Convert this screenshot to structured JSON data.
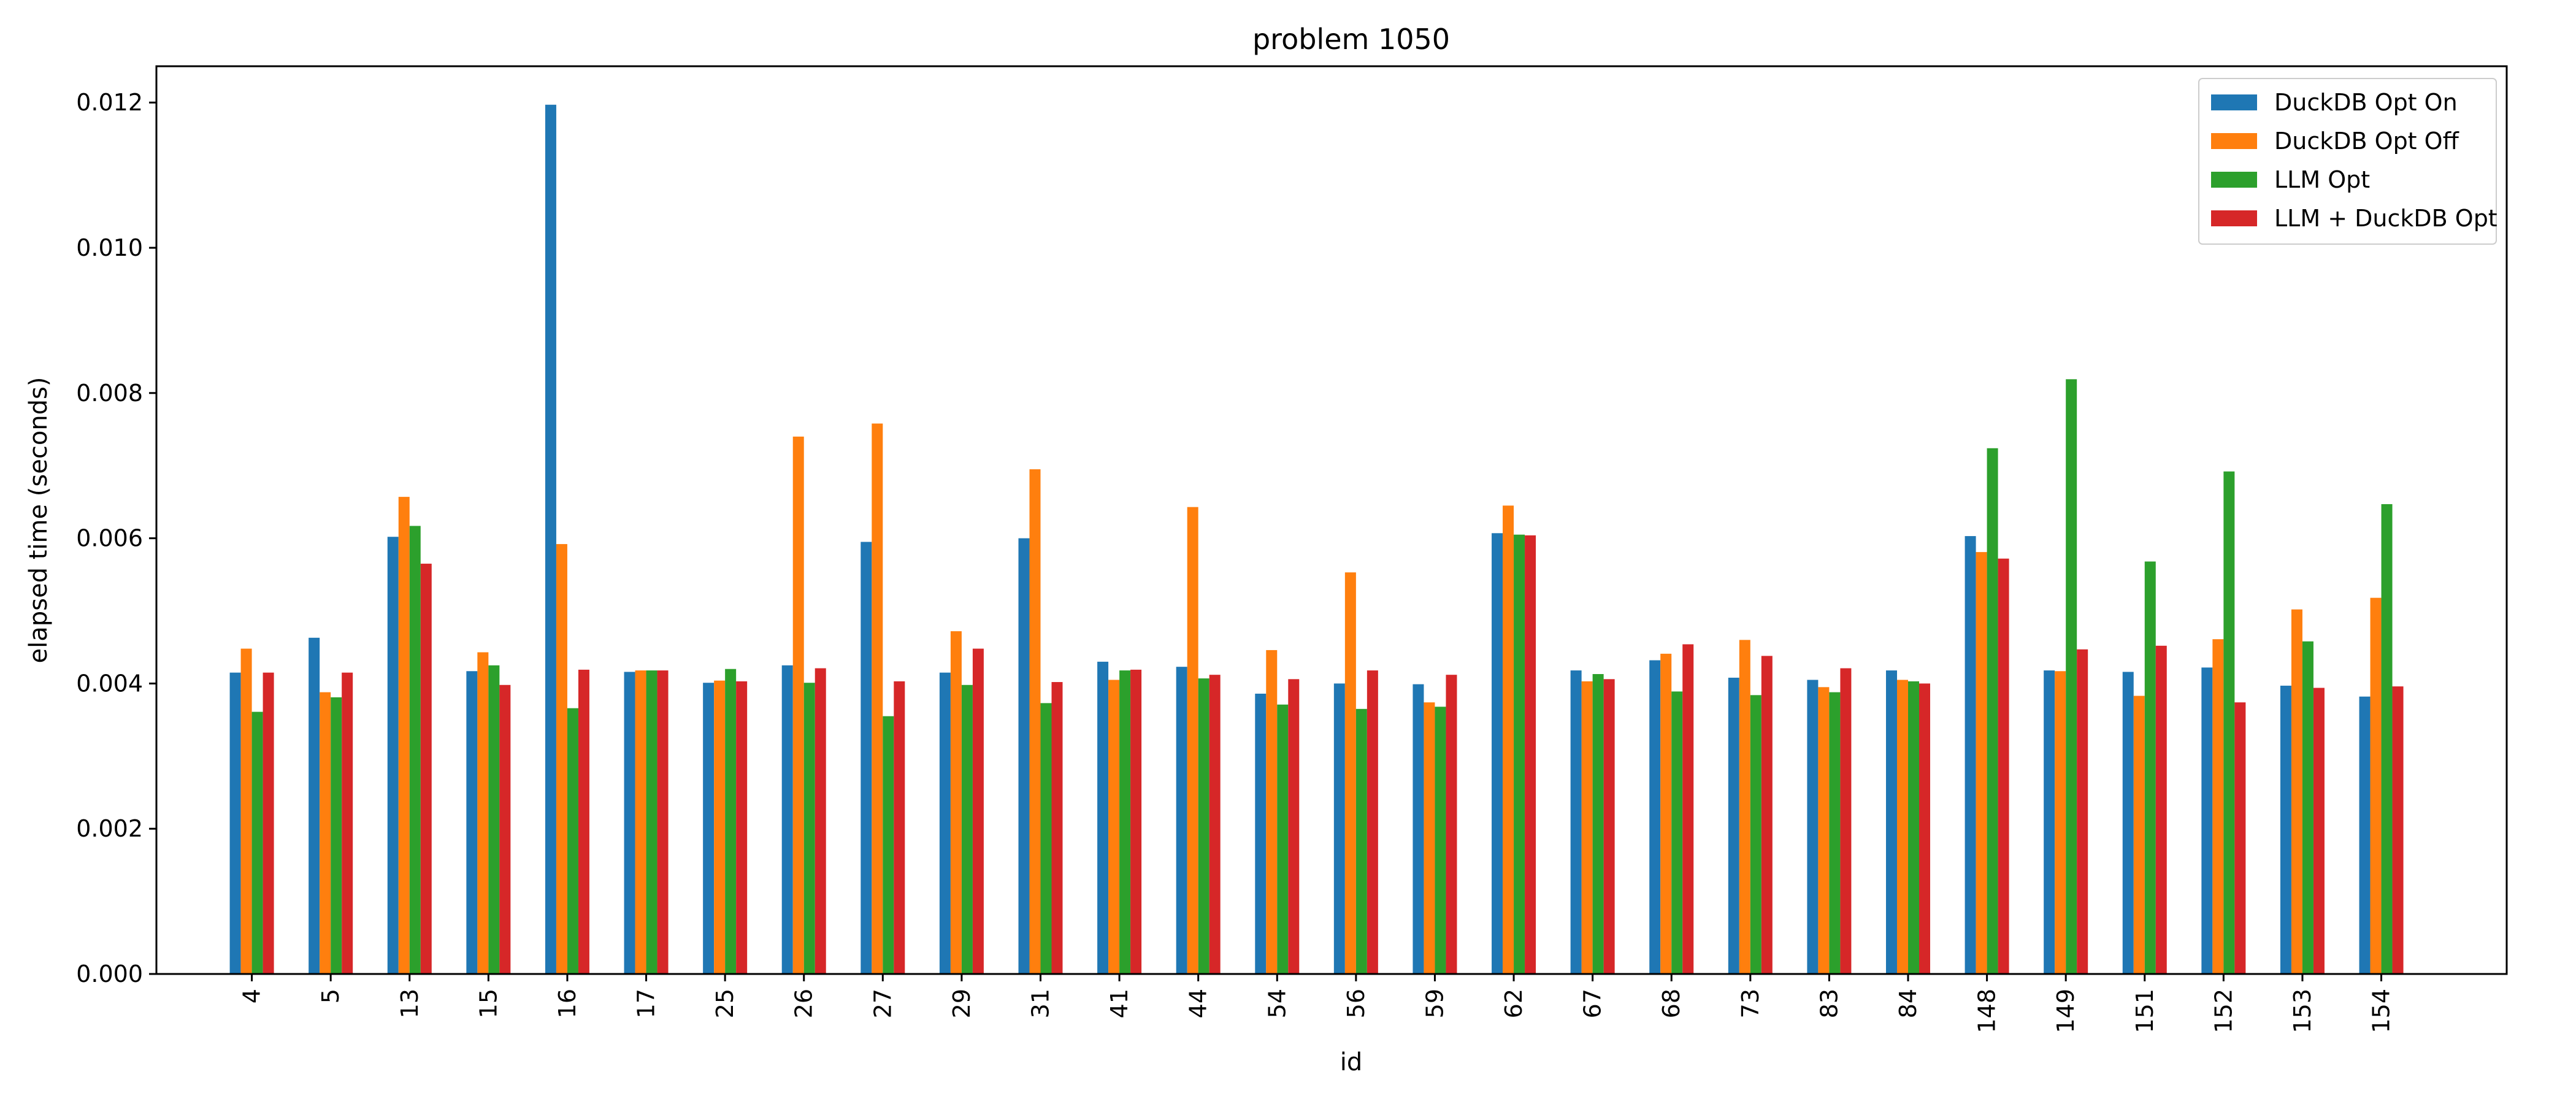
{
  "chart_data": {
    "type": "bar",
    "title": "problem 1050",
    "xlabel": "id",
    "ylabel": "elapsed time (seconds)",
    "ylim": [
      0,
      0.0125
    ],
    "yticks": [
      "0.000",
      "0.002",
      "0.004",
      "0.006",
      "0.008",
      "0.010",
      "0.012"
    ],
    "grid": false,
    "legend_position": "top-right",
    "categories": [
      "4",
      "5",
      "13",
      "15",
      "16",
      "17",
      "25",
      "26",
      "27",
      "29",
      "31",
      "41",
      "44",
      "54",
      "56",
      "59",
      "62",
      "67",
      "68",
      "73",
      "83",
      "84",
      "148",
      "149",
      "151",
      "152",
      "153",
      "154"
    ],
    "series": [
      {
        "name": "DuckDB Opt On",
        "color": "#1f77b4",
        "values": [
          0.00415,
          0.00463,
          0.00602,
          0.00417,
          0.01197,
          0.00416,
          0.00401,
          0.00425,
          0.00595,
          0.00415,
          0.006,
          0.0043,
          0.00423,
          0.00386,
          0.004,
          0.00399,
          0.00607,
          0.00418,
          0.00432,
          0.00408,
          0.00405,
          0.00418,
          0.00603,
          0.00418,
          0.00416,
          0.00422,
          0.00397,
          0.00382
        ]
      },
      {
        "name": "DuckDB Opt Off",
        "color": "#ff7f0e",
        "values": [
          0.00448,
          0.00388,
          0.00657,
          0.00443,
          0.00592,
          0.00418,
          0.00404,
          0.0074,
          0.00758,
          0.00472,
          0.00695,
          0.00405,
          0.00643,
          0.00446,
          0.00553,
          0.00374,
          0.00645,
          0.00403,
          0.00441,
          0.0046,
          0.00395,
          0.00405,
          0.00581,
          0.00417,
          0.00383,
          0.00461,
          0.00502,
          0.00518
        ]
      },
      {
        "name": "LLM Opt",
        "color": "#2ca02c",
        "values": [
          0.00361,
          0.00381,
          0.00617,
          0.00425,
          0.00366,
          0.00418,
          0.0042,
          0.00401,
          0.00355,
          0.00398,
          0.00373,
          0.00418,
          0.00407,
          0.00371,
          0.00365,
          0.00368,
          0.00605,
          0.00413,
          0.00389,
          0.00384,
          0.00388,
          0.00403,
          0.00724,
          0.00819,
          0.00568,
          0.00692,
          0.00458,
          0.00647
        ]
      },
      {
        "name": "LLM + DuckDB Opt",
        "color": "#d62728",
        "values": [
          0.00415,
          0.00415,
          0.00565,
          0.00398,
          0.00419,
          0.00418,
          0.00403,
          0.00421,
          0.00403,
          0.00448,
          0.00402,
          0.00419,
          0.00412,
          0.00406,
          0.00418,
          0.00412,
          0.00604,
          0.00406,
          0.00454,
          0.00438,
          0.00421,
          0.004,
          0.00572,
          0.00447,
          0.00452,
          0.00374,
          0.00394,
          0.00396
        ]
      }
    ]
  }
}
